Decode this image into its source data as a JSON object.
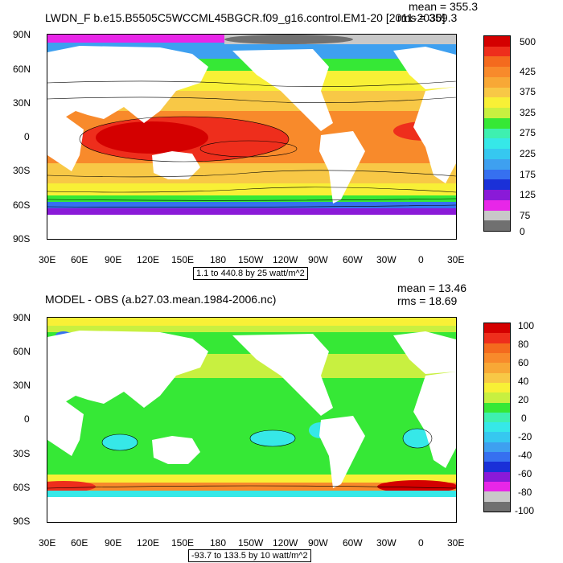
{
  "top": {
    "title": "LWDN_F b.e15.B5505C5WCCML45BGCR.f09_g16.control.EM1-20 [2011-2030]",
    "mean": "mean = 355.3",
    "rms": "rms = 359.3",
    "range": "1.1 to 440.8 by 25 watt/m^2",
    "colorbar_labels": [
      "500",
      "425",
      "375",
      "325",
      "275",
      "225",
      "175",
      "125",
      "75",
      "0"
    ],
    "colorbar_colors": [
      "#d40000",
      "#ee2e1c",
      "#f46a1e",
      "#f88a2b",
      "#f8a836",
      "#f8c846",
      "#f8f036",
      "#c8f040",
      "#36e836",
      "#3ef0b0",
      "#36e8e8",
      "#36c8f0",
      "#3ea0f0",
      "#3670f0",
      "#1a30d8",
      "#8a1ad8",
      "#e826e8",
      "#c8c8c8",
      "#707070"
    ]
  },
  "bottom": {
    "title": "MODEL - OBS (a.b27.03.mean.1984-2006.nc)",
    "mean": "mean = 13.46",
    "rms": "rms = 18.69",
    "range": "-93.7 to 133.5 by 10 watt/m^2",
    "colorbar_labels": [
      "100",
      "80",
      "60",
      "40",
      "20",
      "0",
      "-20",
      "-40",
      "-60",
      "-80",
      "-100"
    ],
    "colorbar_colors": [
      "#d40000",
      "#ee2e1c",
      "#f46a1e",
      "#f88a2b",
      "#f8a836",
      "#f8c846",
      "#f8f036",
      "#c8f040",
      "#36e836",
      "#3ef0b0",
      "#36e8e8",
      "#36c8f0",
      "#3ea0f0",
      "#3670f0",
      "#1a30d8",
      "#8a1ad8",
      "#e826e8",
      "#c8c8c8",
      "#707070"
    ]
  },
  "lat_labels": [
    "90N",
    "60N",
    "30N",
    "0",
    "30S",
    "60S",
    "90S"
  ],
  "lon_labels": [
    "30E",
    "60E",
    "90E",
    "120E",
    "150E",
    "180",
    "150W",
    "120W",
    "90W",
    "60W",
    "30W",
    "0",
    "30E"
  ]
}
